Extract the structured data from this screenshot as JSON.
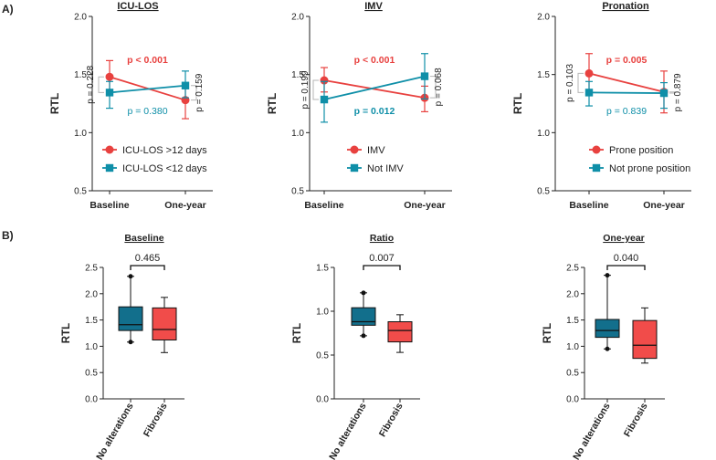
{
  "panel_labels": {
    "a": "A)",
    "b": "B)"
  },
  "colors": {
    "red": "#e8413f",
    "teal": "#0f8fa8",
    "teal_box": "#126f8c",
    "box_red": "#f14c4a",
    "axis": "#222222",
    "bracket": "#b5b5b5"
  },
  "chart_data": [
    {
      "type": "line",
      "title": "ICU-LOS",
      "xlabel": "",
      "ylabel": "RTL",
      "categories": [
        "Baseline",
        "One-year"
      ],
      "ylim": [
        0.5,
        2.0
      ],
      "yticks": [
        "0.5",
        "1.0",
        "1.5",
        "2.0"
      ],
      "series": [
        {
          "name": "ICU-LOS >12 days",
          "color": "red",
          "marker": "circle",
          "values": [
            1.48,
            1.28
          ],
          "err_high": [
            1.62,
            1.4
          ],
          "err_low": [
            1.35,
            1.12
          ]
        },
        {
          "name": "ICU-LOS <12 days",
          "color": "teal",
          "marker": "square",
          "values": [
            1.345,
            1.405
          ],
          "err_high": [
            1.44,
            1.53
          ],
          "err_low": [
            1.21,
            1.3
          ]
        }
      ],
      "annotations": {
        "between_top": "p < 0.001",
        "between_bottom": "p = 0.380",
        "left": "p = 0.228",
        "right": "p = 0.159"
      }
    },
    {
      "type": "line",
      "title": "IMV",
      "xlabel": "",
      "ylabel": "RTL",
      "categories": [
        "Baseline",
        "One-year"
      ],
      "ylim": [
        0.5,
        2.0
      ],
      "yticks": [
        "0.5",
        "1.0",
        "1.5",
        "2.0"
      ],
      "series": [
        {
          "name": "IMV",
          "color": "red",
          "marker": "circle",
          "values": [
            1.45,
            1.3
          ],
          "err_high": [
            1.56,
            1.4
          ],
          "err_low": [
            1.35,
            1.18
          ]
        },
        {
          "name": "Not IMV",
          "color": "teal",
          "marker": "square",
          "values": [
            1.285,
            1.485
          ],
          "err_high": [
            1.44,
            1.68
          ],
          "err_low": [
            1.09,
            1.29
          ]
        }
      ],
      "annotations": {
        "between_top": "p < 0.001",
        "between_bottom": "p = 0.012",
        "left": "p = 0.199",
        "right": "p = 0.068"
      }
    },
    {
      "type": "line",
      "title": "Pronation",
      "xlabel": "",
      "ylabel": "RTL",
      "categories": [
        "Baseline",
        "One-year"
      ],
      "ylim": [
        0.5,
        2.0
      ],
      "yticks": [
        "0.5",
        "1.0",
        "1.5",
        "2.0"
      ],
      "series": [
        {
          "name": "Prone position",
          "color": "red",
          "marker": "circle",
          "values": [
            1.51,
            1.35
          ],
          "err_high": [
            1.68,
            1.53
          ],
          "err_low": [
            1.35,
            1.17
          ]
        },
        {
          "name": "Not prone position",
          "color": "teal",
          "marker": "square",
          "values": [
            1.345,
            1.34
          ],
          "err_high": [
            1.44,
            1.43
          ],
          "err_low": [
            1.23,
            1.21
          ]
        }
      ],
      "annotations": {
        "between_top": "p = 0.005",
        "between_bottom": "p = 0.839",
        "left": "p = 0.103",
        "right": "p = 0.879"
      }
    },
    {
      "type": "box",
      "title": "Baseline",
      "ylabel": "RTL",
      "categories": [
        "No alterations",
        "Fibrosis"
      ],
      "ylim": [
        0.0,
        2.5
      ],
      "yticks": [
        "0.0",
        "0.5",
        "1.0",
        "1.5",
        "2.0",
        "2.5"
      ],
      "boxes": [
        {
          "color": "teal_box",
          "min": 1.08,
          "q1": 1.3,
          "median": 1.41,
          "q3": 1.75,
          "max": 2.33,
          "outliers": [
            2.33,
            1.08
          ]
        },
        {
          "color": "box_red",
          "min": 0.88,
          "q1": 1.12,
          "median": 1.32,
          "q3": 1.73,
          "max": 1.93,
          "outliers": []
        }
      ],
      "comparison": "0.465"
    },
    {
      "type": "box",
      "title": "Ratio",
      "ylabel": "RTL",
      "categories": [
        "No alterations",
        "Fibrosis"
      ],
      "ylim": [
        0.0,
        1.5
      ],
      "yticks": [
        "0.0",
        "0.5",
        "1.0",
        "1.5"
      ],
      "boxes": [
        {
          "color": "teal_box",
          "min": 0.72,
          "q1": 0.84,
          "median": 0.88,
          "q3": 1.04,
          "max": 1.21,
          "outliers": [
            1.21,
            0.72
          ]
        },
        {
          "color": "box_red",
          "min": 0.53,
          "q1": 0.65,
          "median": 0.78,
          "q3": 0.88,
          "max": 0.96,
          "outliers": []
        }
      ],
      "comparison": "0.007"
    },
    {
      "type": "box",
      "title": "One-year",
      "ylabel": "RTL",
      "categories": [
        "No alterations",
        "Fibrosis"
      ],
      "ylim": [
        0.0,
        2.5
      ],
      "yticks": [
        "0.0",
        "0.5",
        "1.0",
        "1.5",
        "2.0",
        "2.5"
      ],
      "boxes": [
        {
          "color": "teal_box",
          "min": 0.95,
          "q1": 1.17,
          "median": 1.3,
          "q3": 1.51,
          "max": 2.35,
          "outliers": [
            2.35,
            0.95
          ]
        },
        {
          "color": "box_red",
          "min": 0.68,
          "q1": 0.77,
          "median": 1.02,
          "q3": 1.49,
          "max": 1.73,
          "outliers": []
        }
      ],
      "comparison": "0.040"
    }
  ]
}
